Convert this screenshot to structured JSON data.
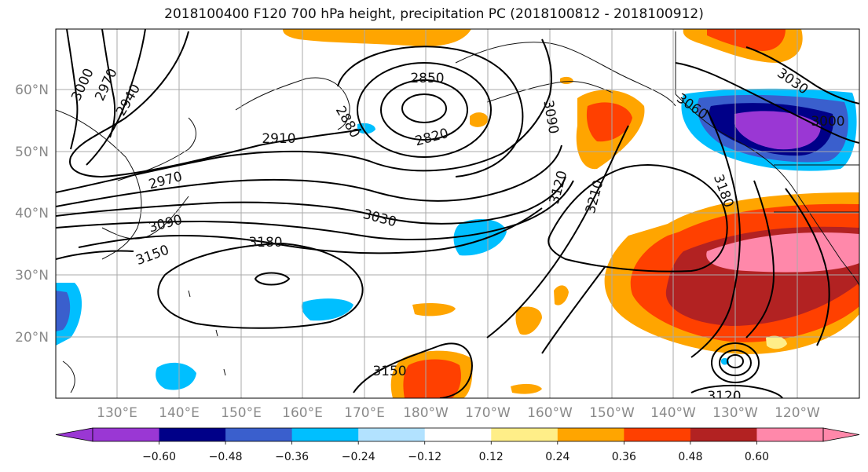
{
  "title": "2018100400 F120 700 hPa height, precipitation PC (2018100812 - 2018100912)",
  "lat_labels": [
    "60°N",
    "50°N",
    "40°N",
    "30°N",
    "20°N"
  ],
  "lon_labels": [
    "130°E",
    "140°E",
    "150°E",
    "160°E",
    "170°E",
    "180°W",
    "170°W",
    "160°W",
    "150°W",
    "140°W",
    "130°W",
    "120°W"
  ],
  "contour_labels": [
    "3000",
    "2970",
    "2940",
    "2910",
    "2970",
    "3090",
    "3150",
    "2850",
    "2880",
    "2820",
    "3030",
    "3180",
    "3090",
    "3120",
    "3210",
    "3060",
    "3180",
    "3030",
    "3000",
    "3150",
    "3120"
  ],
  "colorbar": {
    "ticks": [
      "−0.60",
      "−0.48",
      "−0.36",
      "−0.24",
      "−0.12",
      "0.12",
      "0.24",
      "0.36",
      "0.48",
      "0.60"
    ],
    "colors": [
      "#9a37d4",
      "#000088",
      "#3a5fcd",
      "#00bfff",
      "#b2e2ff",
      "#ffffff",
      "#ffee88",
      "#ffa500",
      "#ff4000",
      "#b22222",
      "#ff88aa"
    ]
  },
  "colors": {
    "land": "#111111",
    "grid": "#aaaaaa",
    "contour": "#000000"
  }
}
